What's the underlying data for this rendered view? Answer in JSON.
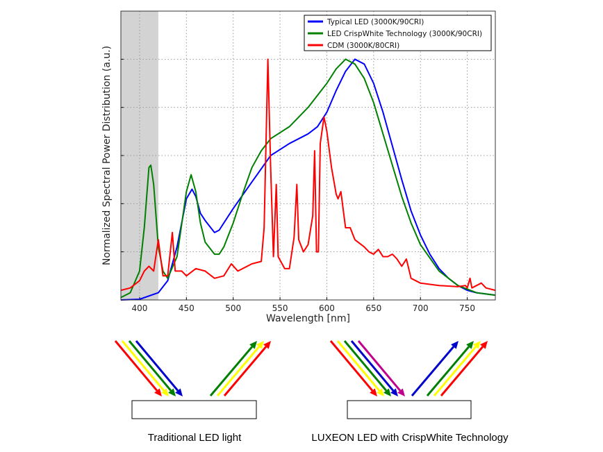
{
  "chart_data": {
    "type": "line",
    "title": "",
    "xlabel": "Wavelength [nm]",
    "ylabel": "Normalized Spectral Power Distribution (a.u.)",
    "xlim": [
      380,
      780
    ],
    "ylim": [
      0,
      1.2
    ],
    "xticks": [
      400,
      450,
      500,
      550,
      600,
      650,
      700,
      750
    ],
    "yticks": [
      0.2,
      0.4,
      0.6,
      0.8,
      1.0
    ],
    "ytick_labels_shown": false,
    "grid": true,
    "shaded_region": {
      "x": [
        380,
        420
      ],
      "color": "#d3d3d3"
    },
    "legend_position": "top-right",
    "series": [
      {
        "name": "Typical LED (3000K/90CRI)",
        "color": "#0000ff",
        "x": [
          380,
          400,
          420,
          430,
          440,
          450,
          456,
          460,
          465,
          470,
          480,
          485,
          500,
          520,
          540,
          560,
          580,
          590,
          600,
          610,
          620,
          630,
          640,
          650,
          660,
          670,
          680,
          690,
          700,
          710,
          720,
          730,
          740,
          750,
          760,
          780
        ],
        "y": [
          0,
          0.003,
          0.03,
          0.08,
          0.22,
          0.42,
          0.46,
          0.43,
          0.36,
          0.33,
          0.28,
          0.29,
          0.38,
          0.49,
          0.6,
          0.65,
          0.69,
          0.72,
          0.78,
          0.87,
          0.95,
          1.0,
          0.98,
          0.9,
          0.78,
          0.64,
          0.5,
          0.37,
          0.27,
          0.19,
          0.13,
          0.09,
          0.06,
          0.04,
          0.03,
          0.02
        ]
      },
      {
        "name": "LED CrispWhite Technology (3000K/90CRI)",
        "color": "#008000",
        "x": [
          380,
          390,
          400,
          405,
          410,
          412,
          415,
          420,
          425,
          430,
          440,
          450,
          455,
          460,
          465,
          470,
          480,
          485,
          490,
          500,
          510,
          520,
          530,
          540,
          560,
          580,
          600,
          610,
          620,
          625,
          630,
          640,
          650,
          660,
          670,
          680,
          690,
          700,
          720,
          740,
          760,
          780
        ],
        "y": [
          0.01,
          0.03,
          0.12,
          0.3,
          0.55,
          0.56,
          0.48,
          0.22,
          0.12,
          0.09,
          0.18,
          0.45,
          0.52,
          0.45,
          0.32,
          0.24,
          0.19,
          0.19,
          0.22,
          0.32,
          0.44,
          0.55,
          0.62,
          0.67,
          0.72,
          0.8,
          0.9,
          0.96,
          1.0,
          0.99,
          0.98,
          0.92,
          0.82,
          0.69,
          0.56,
          0.43,
          0.32,
          0.23,
          0.12,
          0.06,
          0.03,
          0.02
        ]
      },
      {
        "name": "CDM (3000K/80CRI)",
        "color": "#ff0000",
        "x": [
          380,
          390,
          400,
          405,
          410,
          415,
          420,
          425,
          430,
          435,
          438,
          445,
          450,
          460,
          470,
          480,
          490,
          498,
          505,
          520,
          530,
          533,
          537,
          540,
          543,
          546,
          548,
          555,
          560,
          565,
          568,
          570,
          575,
          580,
          585,
          587,
          589,
          591,
          593,
          597,
          600,
          605,
          610,
          612,
          615,
          620,
          625,
          630,
          640,
          645,
          650,
          655,
          660,
          665,
          670,
          675,
          680,
          685,
          690,
          695,
          700,
          720,
          740,
          748,
          750,
          753,
          755,
          765,
          770,
          780
        ],
        "y": [
          0.04,
          0.05,
          0.08,
          0.12,
          0.14,
          0.12,
          0.25,
          0.1,
          0.1,
          0.28,
          0.12,
          0.12,
          0.1,
          0.13,
          0.12,
          0.09,
          0.1,
          0.15,
          0.12,
          0.15,
          0.16,
          0.3,
          1.0,
          0.55,
          0.18,
          0.48,
          0.18,
          0.13,
          0.13,
          0.26,
          0.48,
          0.25,
          0.2,
          0.23,
          0.35,
          0.62,
          0.2,
          0.2,
          0.65,
          0.76,
          0.7,
          0.55,
          0.44,
          0.42,
          0.45,
          0.3,
          0.3,
          0.25,
          0.22,
          0.2,
          0.19,
          0.21,
          0.18,
          0.18,
          0.19,
          0.17,
          0.14,
          0.17,
          0.09,
          0.08,
          0.07,
          0.06,
          0.055,
          0.06,
          0.05,
          0.09,
          0.05,
          0.07,
          0.05,
          0.04
        ]
      }
    ]
  },
  "diagram": {
    "left_caption": "Traditional LED light",
    "right_caption": "LUXEON LED with CrispWhite Technology",
    "left_incoming_colors": [
      "#ff0000",
      "#ffff00",
      "#008000",
      "#0000cc"
    ],
    "left_reflected_colors": [
      "#008000",
      "#ffff00",
      "#ff0000"
    ],
    "right_incoming_colors": [
      "#ff0000",
      "#ffff00",
      "#008000",
      "#0000cc",
      "#c0008c"
    ],
    "right_reflected_colors": [
      "#0000cc",
      "#008000",
      "#ffff00",
      "#ff0000"
    ]
  }
}
